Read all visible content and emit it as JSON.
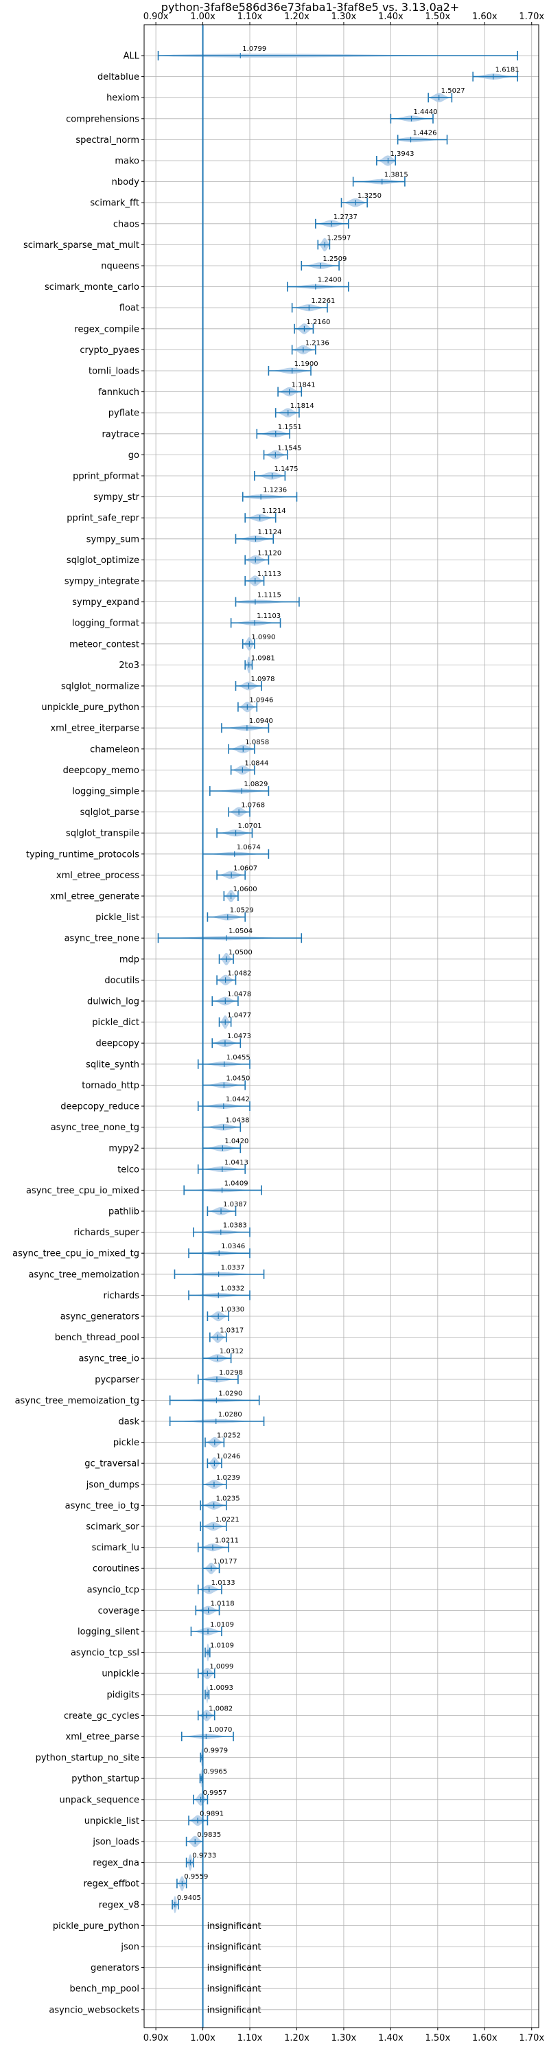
{
  "chart_data": {
    "type": "violin",
    "title": "python-3faf8e586d36e73faba1-3faf8e5 vs. 3.13.0a2+",
    "xlim": [
      0.875,
      1.715
    ],
    "xticks": [
      0.9,
      1.0,
      1.1,
      1.2,
      1.3,
      1.4,
      1.5,
      1.6,
      1.7
    ],
    "xtick_labels": [
      "0.90x",
      "1.00x",
      "1.10x",
      "1.20x",
      "1.30x",
      "1.40x",
      "1.50x",
      "1.60x",
      "1.70x"
    ],
    "grid": true,
    "reference_line": 1.0,
    "insignificant_label": "insignificant",
    "colors": {
      "line": "#1f77b4",
      "fill": "#aecbe8",
      "grid": "#b0b0b0",
      "axis": "#000000"
    },
    "benchmarks": [
      {
        "name": "ALL",
        "value": 1.0799,
        "label": "1.0799",
        "min": 0.905,
        "max": 1.67
      },
      {
        "name": "deltablue",
        "value": 1.6181,
        "label": "1.6181",
        "min": 1.575,
        "max": 1.67
      },
      {
        "name": "hexiom",
        "value": 1.5027,
        "label": "1.5027",
        "min": 1.48,
        "max": 1.53
      },
      {
        "name": "comprehensions",
        "value": 1.444,
        "label": "1.4440",
        "min": 1.4,
        "max": 1.49
      },
      {
        "name": "spectral_norm",
        "value": 1.4426,
        "label": "1.4426",
        "min": 1.415,
        "max": 1.52
      },
      {
        "name": "mako",
        "value": 1.3943,
        "label": "1.3943",
        "min": 1.37,
        "max": 1.41
      },
      {
        "name": "nbody",
        "value": 1.3815,
        "label": "1.3815",
        "min": 1.32,
        "max": 1.43
      },
      {
        "name": "scimark_fft",
        "value": 1.325,
        "label": "1.3250",
        "min": 1.295,
        "max": 1.35
      },
      {
        "name": "chaos",
        "value": 1.2737,
        "label": "1.2737",
        "min": 1.24,
        "max": 1.31
      },
      {
        "name": "scimark_sparse_mat_mult",
        "value": 1.2597,
        "label": "1.2597",
        "min": 1.245,
        "max": 1.27
      },
      {
        "name": "nqueens",
        "value": 1.2509,
        "label": "1.2509",
        "min": 1.21,
        "max": 1.29
      },
      {
        "name": "scimark_monte_carlo",
        "value": 1.24,
        "label": "1.2400",
        "min": 1.18,
        "max": 1.31
      },
      {
        "name": "float",
        "value": 1.2261,
        "label": "1.2261",
        "min": 1.19,
        "max": 1.265
      },
      {
        "name": "regex_compile",
        "value": 1.216,
        "label": "1.2160",
        "min": 1.195,
        "max": 1.235
      },
      {
        "name": "crypto_pyaes",
        "value": 1.2136,
        "label": "1.2136",
        "min": 1.19,
        "max": 1.24
      },
      {
        "name": "tomli_loads",
        "value": 1.19,
        "label": "1.1900",
        "min": 1.14,
        "max": 1.23
      },
      {
        "name": "fannkuch",
        "value": 1.1841,
        "label": "1.1841",
        "min": 1.16,
        "max": 1.21
      },
      {
        "name": "pyflate",
        "value": 1.1814,
        "label": "1.1814",
        "min": 1.155,
        "max": 1.205
      },
      {
        "name": "raytrace",
        "value": 1.1551,
        "label": "1.1551",
        "min": 1.115,
        "max": 1.185
      },
      {
        "name": "go",
        "value": 1.1545,
        "label": "1.1545",
        "min": 1.13,
        "max": 1.18
      },
      {
        "name": "pprint_pformat",
        "value": 1.1475,
        "label": "1.1475",
        "min": 1.11,
        "max": 1.175
      },
      {
        "name": "sympy_str",
        "value": 1.1236,
        "label": "1.1236",
        "min": 1.085,
        "max": 1.2
      },
      {
        "name": "pprint_safe_repr",
        "value": 1.1214,
        "label": "1.1214",
        "min": 1.09,
        "max": 1.155
      },
      {
        "name": "sympy_sum",
        "value": 1.1124,
        "label": "1.1124",
        "min": 1.07,
        "max": 1.15
      },
      {
        "name": "sqlglot_optimize",
        "value": 1.112,
        "label": "1.1120",
        "min": 1.09,
        "max": 1.14
      },
      {
        "name": "sympy_integrate",
        "value": 1.1113,
        "label": "1.1113",
        "min": 1.09,
        "max": 1.13
      },
      {
        "name": "sympy_expand",
        "value": 1.1115,
        "label": "1.1115",
        "min": 1.07,
        "max": 1.205
      },
      {
        "name": "logging_format",
        "value": 1.1103,
        "label": "1.1103",
        "min": 1.06,
        "max": 1.165
      },
      {
        "name": "meteor_contest",
        "value": 1.099,
        "label": "1.0990",
        "min": 1.085,
        "max": 1.11
      },
      {
        "name": "2to3",
        "value": 1.0981,
        "label": "1.0981",
        "min": 1.09,
        "max": 1.105
      },
      {
        "name": "sqlglot_normalize",
        "value": 1.0978,
        "label": "1.0978",
        "min": 1.07,
        "max": 1.125
      },
      {
        "name": "unpickle_pure_python",
        "value": 1.0946,
        "label": "1.0946",
        "min": 1.075,
        "max": 1.115
      },
      {
        "name": "xml_etree_iterparse",
        "value": 1.094,
        "label": "1.0940",
        "min": 1.04,
        "max": 1.14
      },
      {
        "name": "chameleon",
        "value": 1.0858,
        "label": "1.0858",
        "min": 1.055,
        "max": 1.11
      },
      {
        "name": "deepcopy_memo",
        "value": 1.0844,
        "label": "1.0844",
        "min": 1.06,
        "max": 1.11
      },
      {
        "name": "logging_simple",
        "value": 1.0829,
        "label": "1.0829",
        "min": 1.015,
        "max": 1.14
      },
      {
        "name": "sqlglot_parse",
        "value": 1.0768,
        "label": "1.0768",
        "min": 1.055,
        "max": 1.1
      },
      {
        "name": "sqlglot_transpile",
        "value": 1.0701,
        "label": "1.0701",
        "min": 1.03,
        "max": 1.105
      },
      {
        "name": "typing_runtime_protocols",
        "value": 1.0674,
        "label": "1.0674",
        "min": 1.0,
        "max": 1.14
      },
      {
        "name": "xml_etree_process",
        "value": 1.0607,
        "label": "1.0607",
        "min": 1.03,
        "max": 1.09
      },
      {
        "name": "xml_etree_generate",
        "value": 1.06,
        "label": "1.0600",
        "min": 1.045,
        "max": 1.075
      },
      {
        "name": "pickle_list",
        "value": 1.0529,
        "label": "1.0529",
        "min": 1.01,
        "max": 1.09
      },
      {
        "name": "async_tree_none",
        "value": 1.0504,
        "label": "1.0504",
        "min": 0.905,
        "max": 1.21
      },
      {
        "name": "mdp",
        "value": 1.05,
        "label": "1.0500",
        "min": 1.035,
        "max": 1.065
      },
      {
        "name": "docutils",
        "value": 1.0482,
        "label": "1.0482",
        "min": 1.03,
        "max": 1.07
      },
      {
        "name": "dulwich_log",
        "value": 1.0478,
        "label": "1.0478",
        "min": 1.02,
        "max": 1.075
      },
      {
        "name": "pickle_dict",
        "value": 1.0477,
        "label": "1.0477",
        "min": 1.035,
        "max": 1.06
      },
      {
        "name": "deepcopy",
        "value": 1.0473,
        "label": "1.0473",
        "min": 1.02,
        "max": 1.08
      },
      {
        "name": "sqlite_synth",
        "value": 1.0455,
        "label": "1.0455",
        "min": 0.99,
        "max": 1.1
      },
      {
        "name": "tornado_http",
        "value": 1.045,
        "label": "1.0450",
        "min": 1.0,
        "max": 1.09
      },
      {
        "name": "deepcopy_reduce",
        "value": 1.0442,
        "label": "1.0442",
        "min": 0.99,
        "max": 1.1
      },
      {
        "name": "async_tree_none_tg",
        "value": 1.0438,
        "label": "1.0438",
        "min": 1.0,
        "max": 1.08
      },
      {
        "name": "mypy2",
        "value": 1.042,
        "label": "1.0420",
        "min": 1.0,
        "max": 1.08
      },
      {
        "name": "telco",
        "value": 1.0413,
        "label": "1.0413",
        "min": 0.99,
        "max": 1.09
      },
      {
        "name": "async_tree_cpu_io_mixed",
        "value": 1.0409,
        "label": "1.0409",
        "min": 0.96,
        "max": 1.125
      },
      {
        "name": "pathlib",
        "value": 1.0387,
        "label": "1.0387",
        "min": 1.01,
        "max": 1.07
      },
      {
        "name": "richards_super",
        "value": 1.0383,
        "label": "1.0383",
        "min": 0.98,
        "max": 1.1
      },
      {
        "name": "async_tree_cpu_io_mixed_tg",
        "value": 1.0346,
        "label": "1.0346",
        "min": 0.97,
        "max": 1.1
      },
      {
        "name": "async_tree_memoization",
        "value": 1.0337,
        "label": "1.0337",
        "min": 0.94,
        "max": 1.13
      },
      {
        "name": "richards",
        "value": 1.0332,
        "label": "1.0332",
        "min": 0.97,
        "max": 1.1
      },
      {
        "name": "async_generators",
        "value": 1.033,
        "label": "1.0330",
        "min": 1.01,
        "max": 1.055
      },
      {
        "name": "bench_thread_pool",
        "value": 1.0317,
        "label": "1.0317",
        "min": 1.015,
        "max": 1.05
      },
      {
        "name": "async_tree_io",
        "value": 1.0312,
        "label": "1.0312",
        "min": 1.0,
        "max": 1.06
      },
      {
        "name": "pycparser",
        "value": 1.0298,
        "label": "1.0298",
        "min": 0.99,
        "max": 1.075
      },
      {
        "name": "async_tree_memoization_tg",
        "value": 1.029,
        "label": "1.0290",
        "min": 0.93,
        "max": 1.12
      },
      {
        "name": "dask",
        "value": 1.028,
        "label": "1.0280",
        "min": 0.93,
        "max": 1.13
      },
      {
        "name": "pickle",
        "value": 1.0252,
        "label": "1.0252",
        "min": 1.005,
        "max": 1.045
      },
      {
        "name": "gc_traversal",
        "value": 1.0246,
        "label": "1.0246",
        "min": 1.01,
        "max": 1.04
      },
      {
        "name": "json_dumps",
        "value": 1.0239,
        "label": "1.0239",
        "min": 1.0,
        "max": 1.05
      },
      {
        "name": "async_tree_io_tg",
        "value": 1.0235,
        "label": "1.0235",
        "min": 0.995,
        "max": 1.05
      },
      {
        "name": "scimark_sor",
        "value": 1.0221,
        "label": "1.0221",
        "min": 0.995,
        "max": 1.05
      },
      {
        "name": "scimark_lu",
        "value": 1.0211,
        "label": "1.0211",
        "min": 0.99,
        "max": 1.055
      },
      {
        "name": "coroutines",
        "value": 1.0177,
        "label": "1.0177",
        "min": 1.0,
        "max": 1.035
      },
      {
        "name": "asyncio_tcp",
        "value": 1.0133,
        "label": "1.0133",
        "min": 0.99,
        "max": 1.04
      },
      {
        "name": "coverage",
        "value": 1.0118,
        "label": "1.0118",
        "min": 0.985,
        "max": 1.035
      },
      {
        "name": "logging_silent",
        "value": 1.0109,
        "label": "1.0109",
        "min": 0.975,
        "max": 1.04
      },
      {
        "name": "asyncio_tcp_ssl",
        "value": 1.0109,
        "label": "1.0109",
        "min": 1.005,
        "max": 1.015
      },
      {
        "name": "unpickle",
        "value": 1.0099,
        "label": "1.0099",
        "min": 0.99,
        "max": 1.025
      },
      {
        "name": "pidigits",
        "value": 1.0093,
        "label": "1.0093",
        "min": 1.005,
        "max": 1.013
      },
      {
        "name": "create_gc_cycles",
        "value": 1.0082,
        "label": "1.0082",
        "min": 0.99,
        "max": 1.025
      },
      {
        "name": "xml_etree_parse",
        "value": 1.007,
        "label": "1.0070",
        "min": 0.955,
        "max": 1.065
      },
      {
        "name": "python_startup_no_site",
        "value": 0.9979,
        "label": "0.9979",
        "min": 0.995,
        "max": 1.0
      },
      {
        "name": "python_startup",
        "value": 0.9965,
        "label": "0.9965",
        "min": 0.994,
        "max": 0.999
      },
      {
        "name": "unpack_sequence",
        "value": 0.9957,
        "label": "0.9957",
        "min": 0.98,
        "max": 1.01
      },
      {
        "name": "unpickle_list",
        "value": 0.9891,
        "label": "0.9891",
        "min": 0.97,
        "max": 1.01
      },
      {
        "name": "json_loads",
        "value": 0.9835,
        "label": "0.9835",
        "min": 0.965,
        "max": 1.0
      },
      {
        "name": "regex_dna",
        "value": 0.9733,
        "label": "0.9733",
        "min": 0.965,
        "max": 0.98
      },
      {
        "name": "regex_effbot",
        "value": 0.9559,
        "label": "0.9559",
        "min": 0.945,
        "max": 0.965
      },
      {
        "name": "regex_v8",
        "value": 0.9405,
        "label": "0.9405",
        "min": 0.935,
        "max": 0.948
      },
      {
        "name": "pickle_pure_python",
        "value": null,
        "label": "insignificant"
      },
      {
        "name": "json",
        "value": null,
        "label": "insignificant"
      },
      {
        "name": "generators",
        "value": null,
        "label": "insignificant"
      },
      {
        "name": "bench_mp_pool",
        "value": null,
        "label": "insignificant"
      },
      {
        "name": "asyncio_websockets",
        "value": null,
        "label": "insignificant"
      }
    ]
  }
}
